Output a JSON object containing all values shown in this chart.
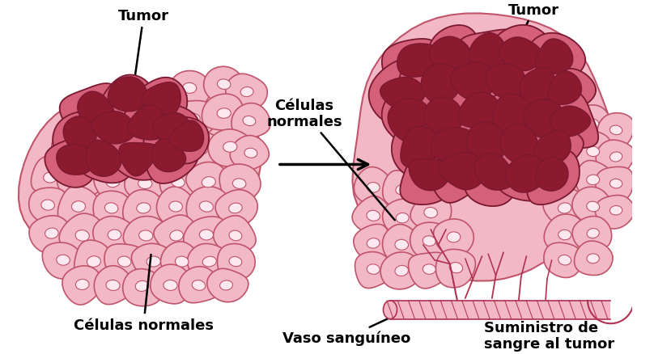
{
  "background_color": "#ffffff",
  "fig_width": 8.08,
  "fig_height": 4.39,
  "dpi": 100,
  "labels": {
    "tumor_left": "Tumor",
    "celulas_normales_left": "Células normales",
    "celulas_normales_center": "Células\nnormales",
    "tumor_right": "Tumor",
    "vaso_sanguineo": "Vaso sanguíneo",
    "suministro": "Suministro de\nsangre al tumor"
  },
  "colors": {
    "normal_cell_fill": "#f2b8c6",
    "normal_cell_border": "#c0546a",
    "normal_cell_inner": "#fce8ee",
    "tumor_outer_fill": "#d4607a",
    "tumor_inner_fill": "#8b1a2e",
    "tumor_border": "#7a1830",
    "blood_vessel_fill": "#f2b8c6",
    "blood_vessel_line": "#b03050",
    "label_color": "#000000"
  }
}
